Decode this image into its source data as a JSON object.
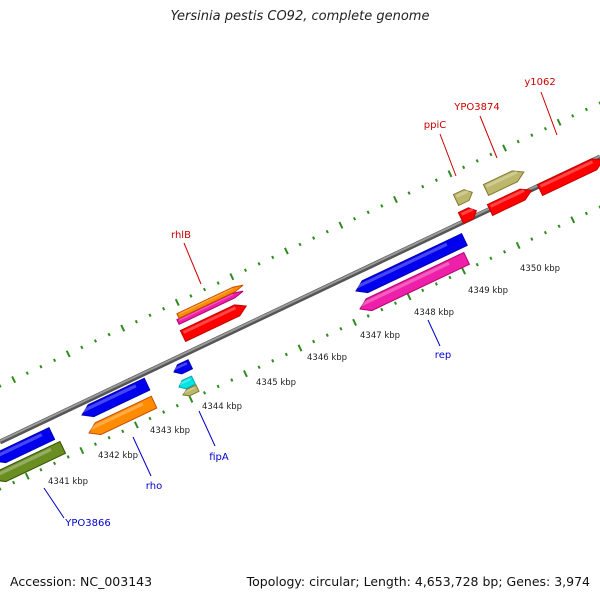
{
  "title": "Yersinia pestis CO92, complete genome",
  "footer": {
    "accession": "Accession: NC_003143",
    "summary": "Topology: circular; Length: 4,653,728 bp; Genes: 3,974"
  },
  "scale": {
    "unit": "kbp",
    "tick_labels": [
      "4341 kbp",
      "4342 kbp",
      "4343 kbp",
      "4344 kbp",
      "4345 kbp",
      "4346 kbp",
      "4347 kbp",
      "4348 kbp",
      "4349 kbp",
      "4350 kbp"
    ]
  },
  "colors": {
    "backbone": "#808080",
    "tick_mark": "#2e8b1e",
    "label_forward": "#cc0000",
    "label_reverse": "#0000cc",
    "red": "#ff0000",
    "blue": "#0000ee",
    "magenta": "#ee1fa8",
    "orange": "#ff8c00",
    "khaki": "#bdb76b",
    "olive": "#6b8e23",
    "cyan": "#00e5e5"
  },
  "gene_labels": {
    "forward": [
      "y1062",
      "YPO3874",
      "ppiC",
      "rhlB"
    ],
    "reverse": [
      "rep",
      "fipA",
      "rho",
      "YPO3866"
    ]
  }
}
